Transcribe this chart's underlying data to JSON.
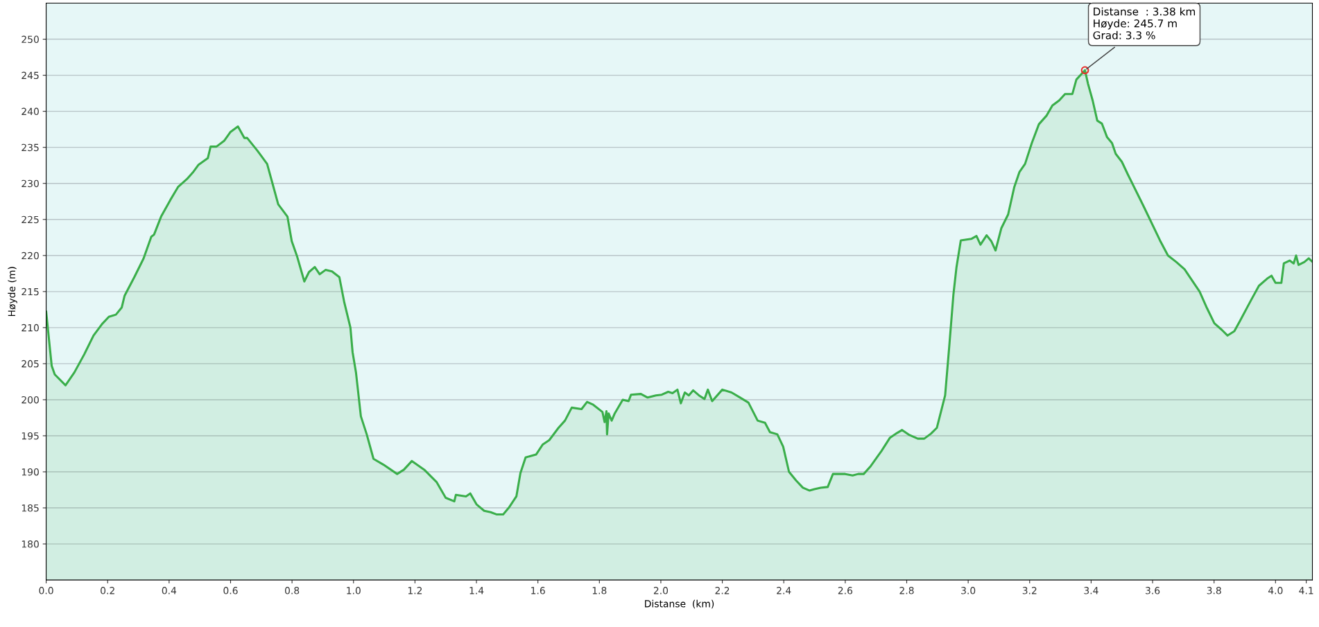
{
  "chart_data": {
    "type": "area",
    "xlabel": "Distanse  (km)",
    "ylabel": "Høyde (m)",
    "xlim": [
      0,
      4.12
    ],
    "xticks": [
      {
        "value": 0,
        "label": "0.0"
      },
      0.2,
      0.4,
      0.6,
      0.8,
      {
        "value": 1,
        "label": "1.0"
      },
      1.2,
      1.4,
      1.6,
      1.8,
      {
        "value": 2,
        "label": "2.0"
      },
      2.2,
      2.4,
      2.6,
      2.8,
      {
        "value": 3,
        "label": "3.0"
      },
      3.2,
      3.4,
      3.6,
      3.8,
      {
        "value": 4.0,
        "label": "4.0"
      },
      4.1
    ],
    "ylim": [
      175,
      255
    ],
    "yticks": [
      180,
      185,
      190,
      195,
      200,
      205,
      210,
      215,
      220,
      225,
      230,
      235,
      240,
      245,
      250
    ],
    "grid": "y",
    "legend": false,
    "series": [
      {
        "color": "#3aae4a",
        "x": [
          0,
          0.018,
          0.028,
          0.063,
          0.092,
          0.124,
          0.154,
          0.182,
          0.204,
          0.227,
          0.246,
          0.255,
          0.288,
          0.317,
          0.342,
          0.351,
          0.374,
          0.404,
          0.429,
          0.458,
          0.477,
          0.496,
          0.526,
          0.535,
          0.554,
          0.579,
          0.599,
          0.624,
          0.645,
          0.654,
          0.688,
          0.719,
          0.737,
          0.755,
          0.785,
          0.799,
          0.817,
          0.84,
          0.855,
          0.874,
          0.89,
          0.909,
          0.93,
          0.954,
          0.97,
          0.99,
          0.997,
          1.008,
          1.024,
          1.043,
          1.065,
          1.097,
          1.142,
          1.164,
          1.19,
          1.23,
          1.27,
          1.3,
          1.328,
          1.333,
          1.366,
          1.38,
          1.4,
          1.425,
          1.446,
          1.465,
          1.487,
          1.505,
          1.53,
          1.543,
          1.56,
          1.594,
          1.616,
          1.637,
          1.667,
          1.688,
          1.71,
          1.742,
          1.76,
          1.78,
          1.81,
          1.817,
          1.823,
          1.825,
          1.83,
          1.84,
          1.85,
          1.876,
          1.895,
          1.903,
          1.935,
          1.957,
          1.984,
          2.003,
          2.024,
          2.038,
          2.054,
          2.065,
          2.078,
          2.091,
          2.105,
          2.124,
          2.142,
          2.153,
          2.167,
          2.2,
          2.23,
          2.258,
          2.285,
          2.315,
          2.339,
          2.355,
          2.379,
          2.398,
          2.417,
          2.44,
          2.462,
          2.484,
          2.5,
          2.52,
          2.543,
          2.56,
          2.6,
          2.624,
          2.642,
          2.66,
          2.683,
          2.718,
          2.745,
          2.769,
          2.785,
          2.809,
          2.836,
          2.857,
          2.879,
          2.898,
          2.925,
          2.938,
          2.952,
          2.962,
          2.976,
          3.01,
          3.027,
          3.04,
          3.06,
          3.075,
          3.089,
          3.108,
          3.13,
          3.15,
          3.167,
          3.185,
          3.207,
          3.23,
          3.255,
          3.274,
          3.296,
          3.315,
          3.339,
          3.352,
          3.38,
          3.39,
          3.405,
          3.42,
          3.435,
          3.452,
          3.468,
          3.48,
          3.5,
          3.52,
          3.57,
          3.624,
          3.65,
          3.677,
          3.704,
          3.737,
          3.753,
          3.777,
          3.801,
          3.825,
          3.844,
          3.866,
          3.884,
          3.919,
          3.946,
          3.973,
          3.987,
          4.0,
          4.019,
          4.027,
          4.046,
          4.059,
          4.067,
          4.075,
          4.094,
          4.108,
          4.118
        ],
        "values": [
          212.2,
          204.7,
          203.5,
          202,
          203.8,
          206.3,
          208.9,
          210.5,
          211.5,
          211.8,
          212.8,
          214.4,
          217.1,
          219.6,
          222.6,
          222.9,
          225.4,
          227.7,
          229.5,
          230.6,
          231.5,
          232.6,
          233.5,
          235.1,
          235.1,
          235.9,
          237.1,
          237.9,
          236.3,
          236.3,
          234.5,
          232.7,
          229.9,
          227.1,
          225.4,
          222,
          219.8,
          216.4,
          217.7,
          218.4,
          217.4,
          218,
          217.8,
          217,
          213.5,
          210,
          206.6,
          203.8,
          197.7,
          195.2,
          191.8,
          191,
          189.7,
          190.3,
          191.5,
          190.3,
          188.6,
          186.4,
          185.9,
          186.8,
          186.6,
          187,
          185.5,
          184.6,
          184.4,
          184.1,
          184.1,
          185,
          186.6,
          189.8,
          192,
          192.4,
          193.8,
          194.4,
          196.1,
          197.1,
          198.9,
          198.7,
          199.7,
          199.3,
          198.3,
          196.9,
          198.4,
          195.2,
          198.1,
          197.1,
          198.1,
          200,
          199.8,
          200.7,
          200.8,
          200.3,
          200.6,
          200.7,
          201.1,
          200.9,
          201.4,
          199.5,
          201,
          200.6,
          201.3,
          200.6,
          200.1,
          201.4,
          199.8,
          201.4,
          201,
          200.3,
          199.6,
          197.1,
          196.8,
          195.5,
          195.2,
          193.5,
          190,
          188.8,
          187.8,
          187.4,
          187.6,
          187.8,
          187.9,
          189.7,
          189.7,
          189.5,
          189.7,
          189.7,
          190.8,
          192.9,
          194.7,
          195.4,
          195.8,
          195.1,
          194.6,
          194.6,
          195.3,
          196.1,
          200.6,
          207.2,
          214.6,
          218.4,
          222.1,
          222.3,
          222.7,
          221.5,
          222.8,
          222,
          220.7,
          223.8,
          225.7,
          229.5,
          231.6,
          232.7,
          235.6,
          238.2,
          239.4,
          240.8,
          241.5,
          242.4,
          242.4,
          244.4,
          245.7,
          243.8,
          241.5,
          238.7,
          238.3,
          236.4,
          235.6,
          234.1,
          233,
          231.2,
          226.9,
          222.1,
          220,
          219.1,
          218.1,
          216,
          215,
          212.7,
          210.6,
          209.7,
          208.9,
          209.5,
          210.9,
          213.7,
          215.8,
          216.8,
          217.2,
          216.2,
          216.2,
          218.9,
          219.3,
          218.9,
          220,
          218.7,
          219.1,
          219.6,
          219.2
        ]
      }
    ],
    "annotations": [
      {
        "text": "Distanse  : 3.38 km\nHøyde: 245.7 m\nGrad: 3.3 %",
        "x": 3.38,
        "y": 245.7
      }
    ]
  }
}
